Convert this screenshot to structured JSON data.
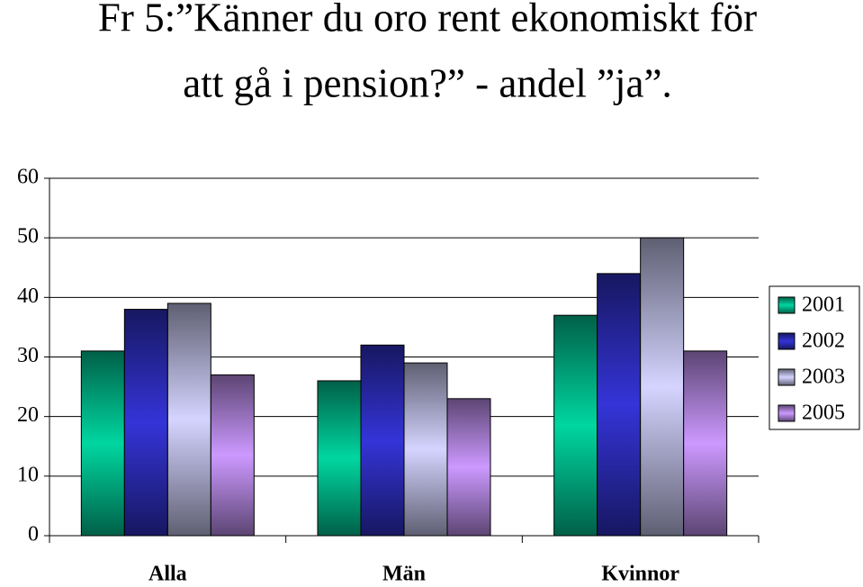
{
  "chart_data": {
    "type": "bar",
    "title": [
      "Fr 5:”Känner du oro rent ekonomiskt för",
      "att gå i pension?” - andel ”ja”."
    ],
    "categories": [
      "Alla",
      "Män",
      "Kvinnor"
    ],
    "series": [
      {
        "name": "2001",
        "color": "#00d6a0",
        "values": [
          31,
          26,
          37
        ]
      },
      {
        "name": "2002",
        "color": "#3434d8",
        "values": [
          38,
          32,
          44
        ]
      },
      {
        "name": "2003",
        "color": "#d4d4ff",
        "values": [
          39,
          29,
          50
        ]
      },
      {
        "name": "2005",
        "color": "#cc99ff",
        "values": [
          27,
          23,
          31
        ]
      }
    ],
    "ylim": [
      0,
      60
    ],
    "yticks": [
      0,
      10,
      20,
      30,
      40,
      50,
      60
    ],
    "grid": true,
    "legend": "right"
  }
}
